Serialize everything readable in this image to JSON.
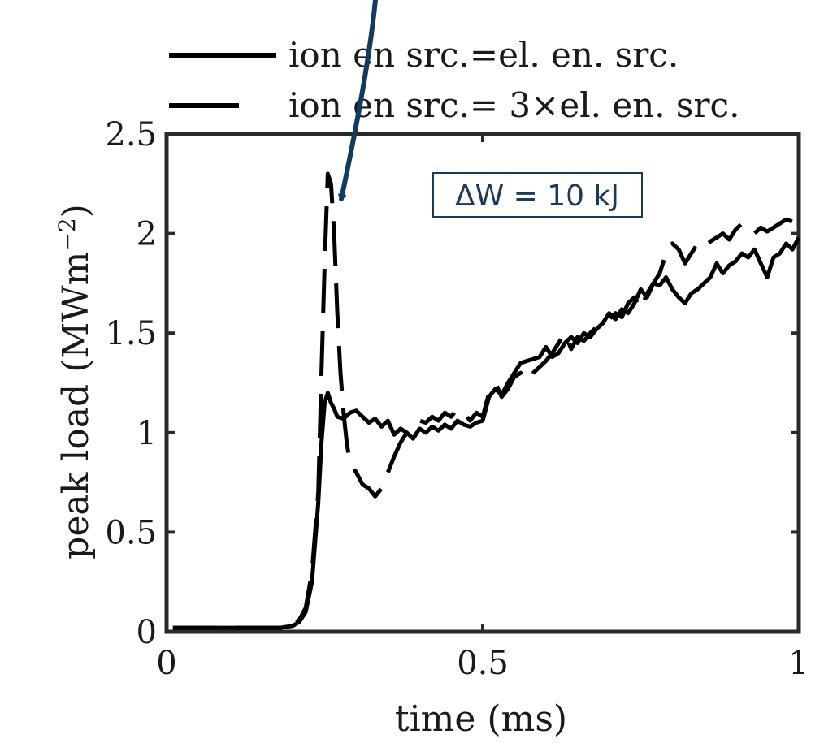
{
  "chart_data": {
    "type": "line",
    "xlabel": "time (ms)",
    "ylabel_main": "peak load (MWm",
    "ylabel_sup": "−2",
    "ylabel_close": ")",
    "xlim": [
      0,
      1
    ],
    "ylim": [
      0,
      2.5
    ],
    "xticks": [
      0,
      0.5,
      1
    ],
    "xtick_labels": [
      "0",
      "0.5",
      "1"
    ],
    "yticks": [
      0,
      0.5,
      1,
      1.5,
      2,
      2.5
    ],
    "ytick_labels": [
      "0",
      "0.5",
      "1",
      "1.5",
      "2",
      "2.5"
    ],
    "grid": false,
    "legend_position": "top, above plot",
    "annotation": "ΔW = 10 kJ",
    "annotation_color": "#1b3a5c",
    "arrow_color": "#123b60",
    "series": [
      {
        "name": "ion en src.=el. en. src.",
        "style": "solid",
        "color": "#000000",
        "x": [
          0.01,
          0.05,
          0.1,
          0.15,
          0.18,
          0.2,
          0.21,
          0.22,
          0.23,
          0.24,
          0.245,
          0.25,
          0.255,
          0.26,
          0.265,
          0.27,
          0.28,
          0.29,
          0.3,
          0.31,
          0.32,
          0.33,
          0.34,
          0.35,
          0.36,
          0.37,
          0.38,
          0.39,
          0.4,
          0.41,
          0.42,
          0.43,
          0.44,
          0.45,
          0.46,
          0.47,
          0.48,
          0.49,
          0.5,
          0.51,
          0.52,
          0.53,
          0.54,
          0.55,
          0.56,
          0.57,
          0.58,
          0.59,
          0.6,
          0.61,
          0.62,
          0.63,
          0.64,
          0.65,
          0.66,
          0.67,
          0.68,
          0.69,
          0.7,
          0.71,
          0.72,
          0.73,
          0.74,
          0.75,
          0.76,
          0.77,
          0.78,
          0.79,
          0.8,
          0.81,
          0.82,
          0.83,
          0.84,
          0.85,
          0.86,
          0.87,
          0.88,
          0.89,
          0.9,
          0.91,
          0.92,
          0.93,
          0.94,
          0.95,
          0.96,
          0.97,
          0.98,
          0.99,
          1.0
        ],
        "y": [
          0.02,
          0.02,
          0.02,
          0.02,
          0.02,
          0.03,
          0.05,
          0.1,
          0.25,
          0.65,
          0.95,
          1.15,
          1.2,
          1.15,
          1.12,
          1.08,
          1.07,
          1.1,
          1.11,
          1.08,
          1.05,
          1.07,
          1.03,
          1.06,
          0.99,
          1.02,
          1.0,
          0.97,
          1.02,
          1.0,
          1.03,
          1.01,
          1.04,
          1.02,
          1.06,
          1.04,
          1.03,
          1.05,
          1.06,
          1.18,
          1.22,
          1.19,
          1.25,
          1.3,
          1.35,
          1.36,
          1.37,
          1.38,
          1.43,
          1.38,
          1.4,
          1.45,
          1.48,
          1.45,
          1.5,
          1.48,
          1.52,
          1.55,
          1.6,
          1.57,
          1.62,
          1.6,
          1.65,
          1.72,
          1.68,
          1.75,
          1.74,
          1.78,
          1.72,
          1.68,
          1.65,
          1.7,
          1.72,
          1.75,
          1.78,
          1.85,
          1.8,
          1.84,
          1.86,
          1.9,
          1.88,
          1.92,
          1.85,
          1.78,
          1.88,
          1.9,
          1.95,
          1.92,
          1.98
        ]
      },
      {
        "name": "ion en src.= 3×el. en. src.",
        "style": "dashed",
        "color": "#000000",
        "x": [
          0.01,
          0.05,
          0.1,
          0.15,
          0.18,
          0.2,
          0.21,
          0.22,
          0.23,
          0.24,
          0.245,
          0.25,
          0.255,
          0.26,
          0.265,
          0.27,
          0.275,
          0.28,
          0.285,
          0.29,
          0.3,
          0.31,
          0.32,
          0.33,
          0.34,
          0.35,
          0.36,
          0.37,
          0.38,
          0.39,
          0.4,
          0.41,
          0.42,
          0.43,
          0.44,
          0.45,
          0.46,
          0.47,
          0.48,
          0.49,
          0.5,
          0.51,
          0.52,
          0.53,
          0.54,
          0.55,
          0.56,
          0.57,
          0.58,
          0.59,
          0.6,
          0.61,
          0.62,
          0.63,
          0.64,
          0.65,
          0.66,
          0.67,
          0.68,
          0.69,
          0.7,
          0.71,
          0.72,
          0.73,
          0.74,
          0.75,
          0.76,
          0.77,
          0.78,
          0.79,
          0.8,
          0.81,
          0.82,
          0.83,
          0.84,
          0.85,
          0.86,
          0.87,
          0.88,
          0.89,
          0.9,
          0.91,
          0.92,
          0.93,
          0.94,
          0.95,
          0.96,
          0.97,
          0.98,
          0.99,
          1.0
        ],
        "y": [
          0.02,
          0.02,
          0.02,
          0.02,
          0.02,
          0.03,
          0.06,
          0.12,
          0.3,
          0.7,
          1.3,
          1.85,
          2.3,
          2.25,
          2.0,
          1.6,
          1.3,
          1.1,
          0.95,
          0.85,
          0.8,
          0.74,
          0.72,
          0.68,
          0.72,
          0.8,
          0.88,
          0.95,
          1.0,
          1.04,
          1.06,
          1.05,
          1.08,
          1.06,
          1.1,
          1.08,
          1.12,
          1.1,
          1.06,
          1.1,
          1.08,
          1.2,
          1.25,
          1.18,
          1.22,
          1.28,
          1.3,
          1.26,
          1.3,
          1.33,
          1.36,
          1.4,
          1.45,
          1.5,
          1.42,
          1.48,
          1.46,
          1.5,
          1.53,
          1.55,
          1.57,
          1.6,
          1.58,
          1.65,
          1.68,
          1.62,
          1.7,
          1.75,
          1.8,
          1.9,
          1.95,
          1.92,
          1.85,
          1.9,
          1.95,
          1.93,
          1.96,
          1.98,
          2.0,
          1.97,
          2.02,
          2.05,
          2.02,
          2.0,
          2.03,
          2.01,
          2.03,
          2.05,
          2.07,
          2.06,
          2.04
        ]
      }
    ]
  }
}
